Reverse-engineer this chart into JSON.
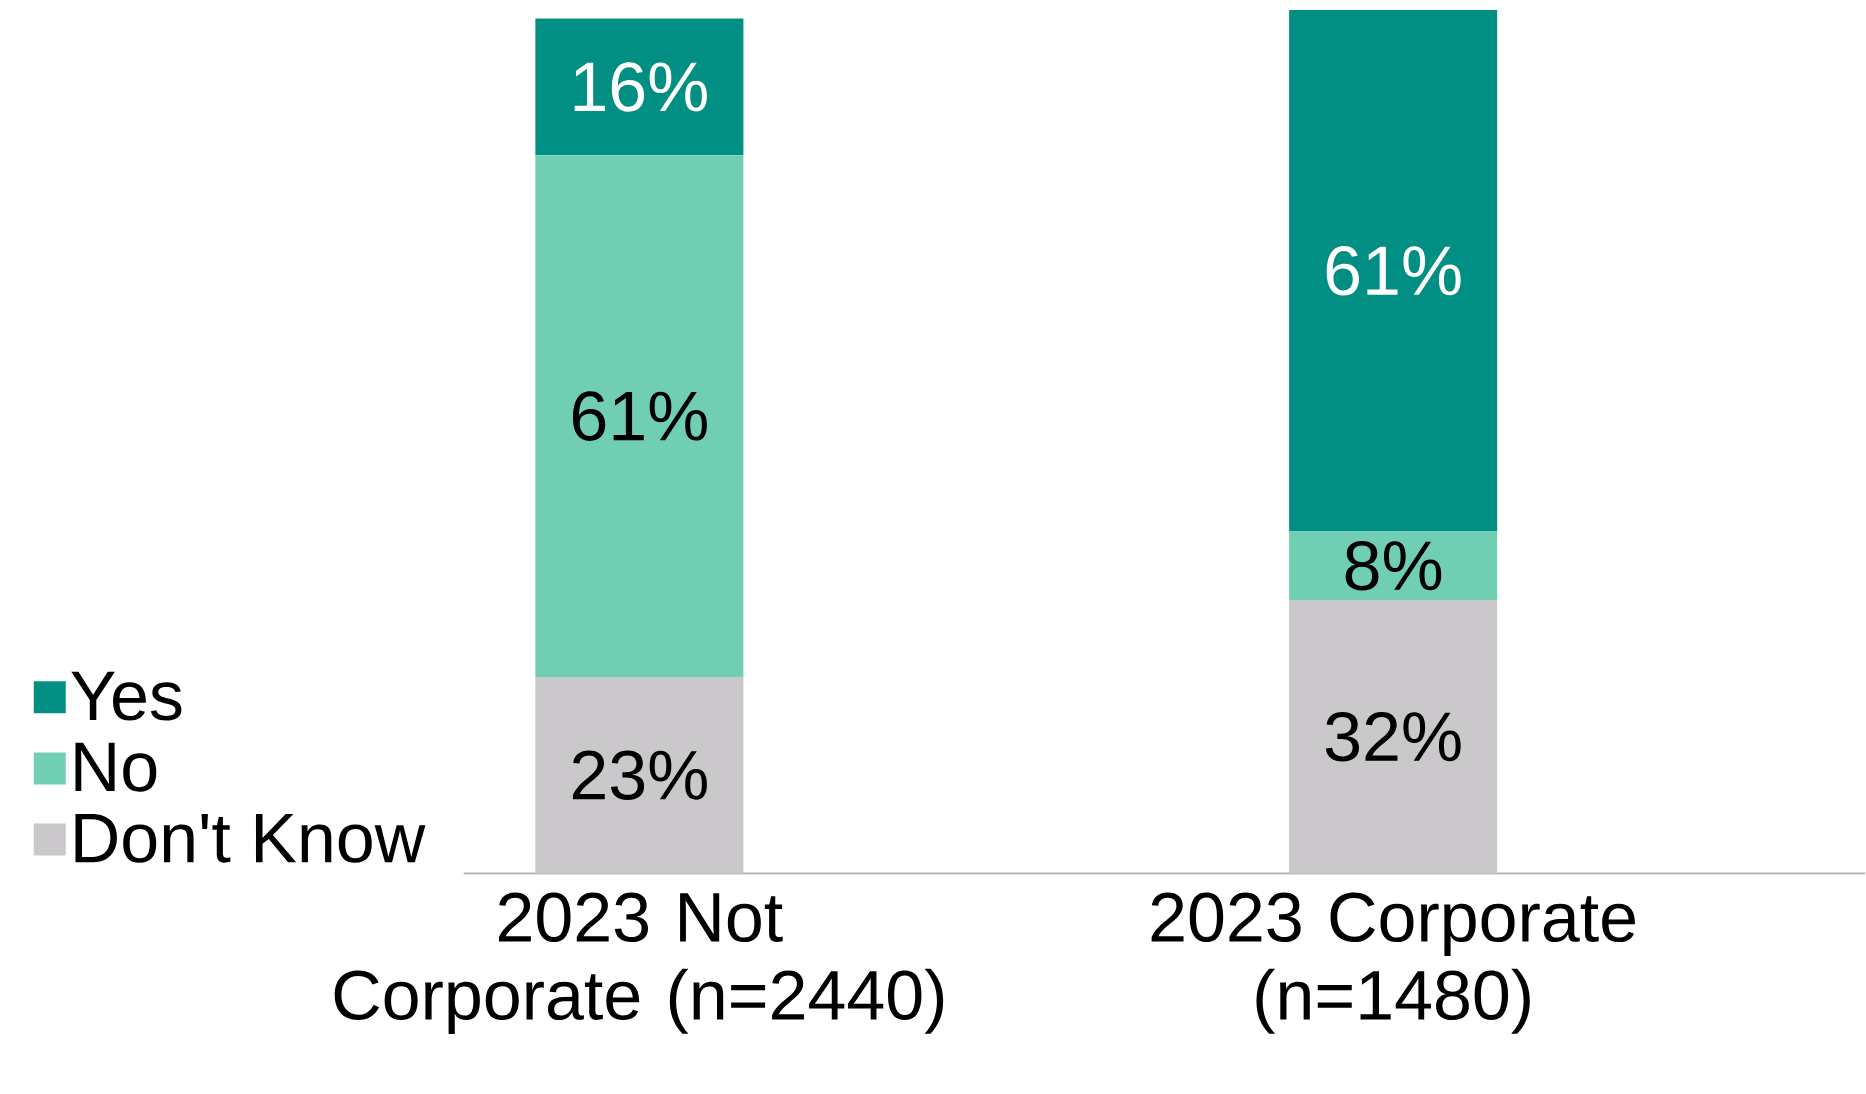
{
  "chart_data": {
    "type": "bar",
    "stacked": true,
    "legend": "left",
    "categories": [
      "2023 Not Corporate (n=2440)",
      "2023 Corporate (n=1480)"
    ],
    "series": [
      {
        "name": "Don't Know",
        "color": "#cbc8cc",
        "values": [
          23,
          32
        ],
        "value_labels": [
          "23%",
          "32%"
        ]
      },
      {
        "name": "No",
        "color": "#70cfb3",
        "values": [
          61,
          8
        ],
        "value_labels": [
          "61%",
          "8%"
        ]
      },
      {
        "name": "Yes",
        "color": "#008f82",
        "values": [
          16,
          61
        ],
        "value_labels": [
          "16%",
          "61%"
        ]
      }
    ]
  }
}
